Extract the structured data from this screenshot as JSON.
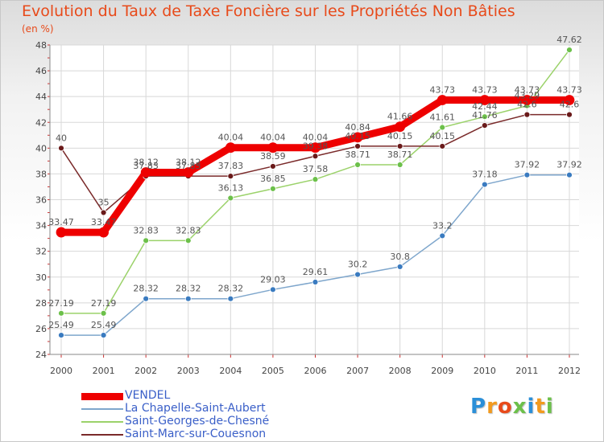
{
  "title": "Evolution du Taux de Taxe Foncière sur les Propriétés Non Bâties",
  "subtitle": "(en %)",
  "logo": {
    "text": "Proxiti",
    "letters": [
      "P",
      "r",
      "o",
      "x",
      "i",
      "t",
      "i"
    ],
    "colors": [
      "#2b8fd8",
      "#f29a1e",
      "#e84a1a",
      "#6cc04a",
      "#2b8fd8",
      "#f29a1e",
      "#6cc04a"
    ]
  },
  "chart_data": {
    "type": "line",
    "title": "Evolution du Taux de Taxe Foncière sur les Propriétés Non Bâties",
    "ylabel": "(en %)",
    "xlabel": "",
    "categories": [
      "2000",
      "2001",
      "2002",
      "2003",
      "2004",
      "2005",
      "2006",
      "2007",
      "2008",
      "2009",
      "2010",
      "2011",
      "2012"
    ],
    "ylim": [
      24,
      48
    ],
    "yticks": [
      24,
      26,
      28,
      30,
      32,
      34,
      36,
      38,
      40,
      42,
      44,
      46,
      48
    ],
    "grid": true,
    "legend_position": "bottom-left",
    "series": [
      {
        "name": "VENDEL",
        "color": "#ee0000",
        "markerColor": "#ee0000",
        "width": 9,
        "values": [
          33.47,
          33.47,
          38.12,
          38.12,
          40.04,
          40.04,
          40.04,
          40.84,
          41.66,
          43.73,
          43.73,
          43.73,
          43.73
        ],
        "labels": [
          "33.47",
          "33.47",
          "38.12",
          "38.12",
          "40.04",
          "40.04",
          "40.04",
          "40.84",
          "41.66",
          "43.73",
          "43.73",
          "43.73",
          "43.73"
        ]
      },
      {
        "name": "La Chapelle-Saint-Aubert",
        "color": "#7ea6cc",
        "markerColor": "#3a7bc0",
        "width": 1.5,
        "values": [
          25.49,
          25.49,
          28.32,
          28.32,
          28.32,
          29.03,
          29.61,
          30.2,
          30.8,
          33.2,
          37.18,
          37.92,
          37.92
        ],
        "labels": [
          "25.49",
          "25.49",
          "28.32",
          "28.32",
          "28.32",
          "29.03",
          "29.61",
          "30.2",
          "30.8",
          "33.2",
          "37.18",
          "37.92",
          "37.92"
        ]
      },
      {
        "name": "Saint-Georges-de-Chesné",
        "color": "#9bd26a",
        "markerColor": "#6cc04a",
        "width": 1.5,
        "values": [
          27.19,
          27.19,
          32.83,
          32.83,
          36.13,
          36.85,
          37.58,
          38.71,
          38.71,
          41.61,
          42.44,
          43.29,
          47.62
        ],
        "labels": [
          "27.19",
          "27.19",
          "32.83",
          "32.83",
          "36.13",
          "36.85",
          "37.58",
          "38.71",
          "38.71",
          "41.61",
          "42.44",
          "43.29",
          "47.62"
        ]
      },
      {
        "name": "Saint-Marc-sur-Couesnon",
        "color": "#7a2a2a",
        "markerColor": "#6a1a1a",
        "width": 1.5,
        "values": [
          40,
          35,
          37.83,
          37.83,
          37.83,
          38.59,
          39.38,
          40.15,
          40.15,
          40.15,
          41.76,
          42.6,
          42.6
        ],
        "labels": [
          "40",
          "35",
          "37.83",
          "37.83",
          "37.83",
          "38.59",
          "39.38",
          "40.15",
          "40.15",
          "40.15",
          "41.76",
          "42.6",
          "42.6"
        ]
      }
    ]
  }
}
